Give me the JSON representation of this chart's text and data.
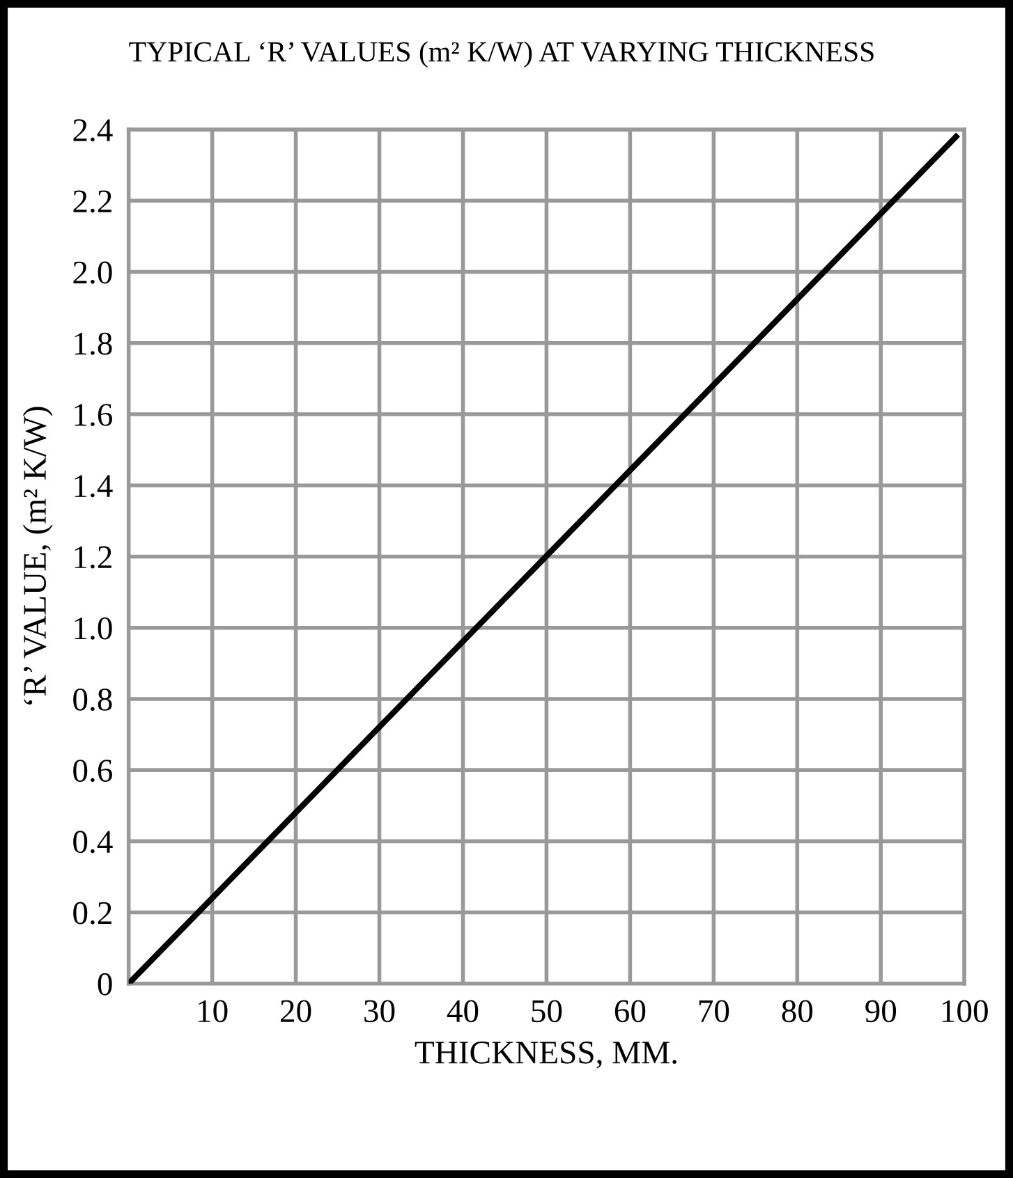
{
  "chart_data": {
    "type": "line",
    "title": "TYPICAL ‘R’ VALUES (m² K/W) AT VARYING THICKNESS",
    "xlabel": "THICKNESS, MM.",
    "ylabel": "‘R’ VALUE, (m² K/W)",
    "x": [
      0,
      99
    ],
    "series": [
      {
        "color": "#000000",
        "values": [
          0,
          2.38
        ]
      }
    ],
    "xlim": [
      0,
      100
    ],
    "xticks": [
      10,
      20,
      30,
      40,
      50,
      60,
      70,
      80,
      90,
      100
    ],
    "ylim": [
      0,
      2.4
    ],
    "yticks": [
      0,
      0.2,
      0.4,
      0.6,
      0.8,
      {
        "value": 1,
        "label": "1.0"
      },
      1.2,
      1.4,
      1.6,
      1.8,
      {
        "value": 2,
        "label": "2.0"
      },
      2.2,
      2.4
    ],
    "grid": true,
    "legend": false,
    "marker": "none",
    "line_style": "solid"
  }
}
